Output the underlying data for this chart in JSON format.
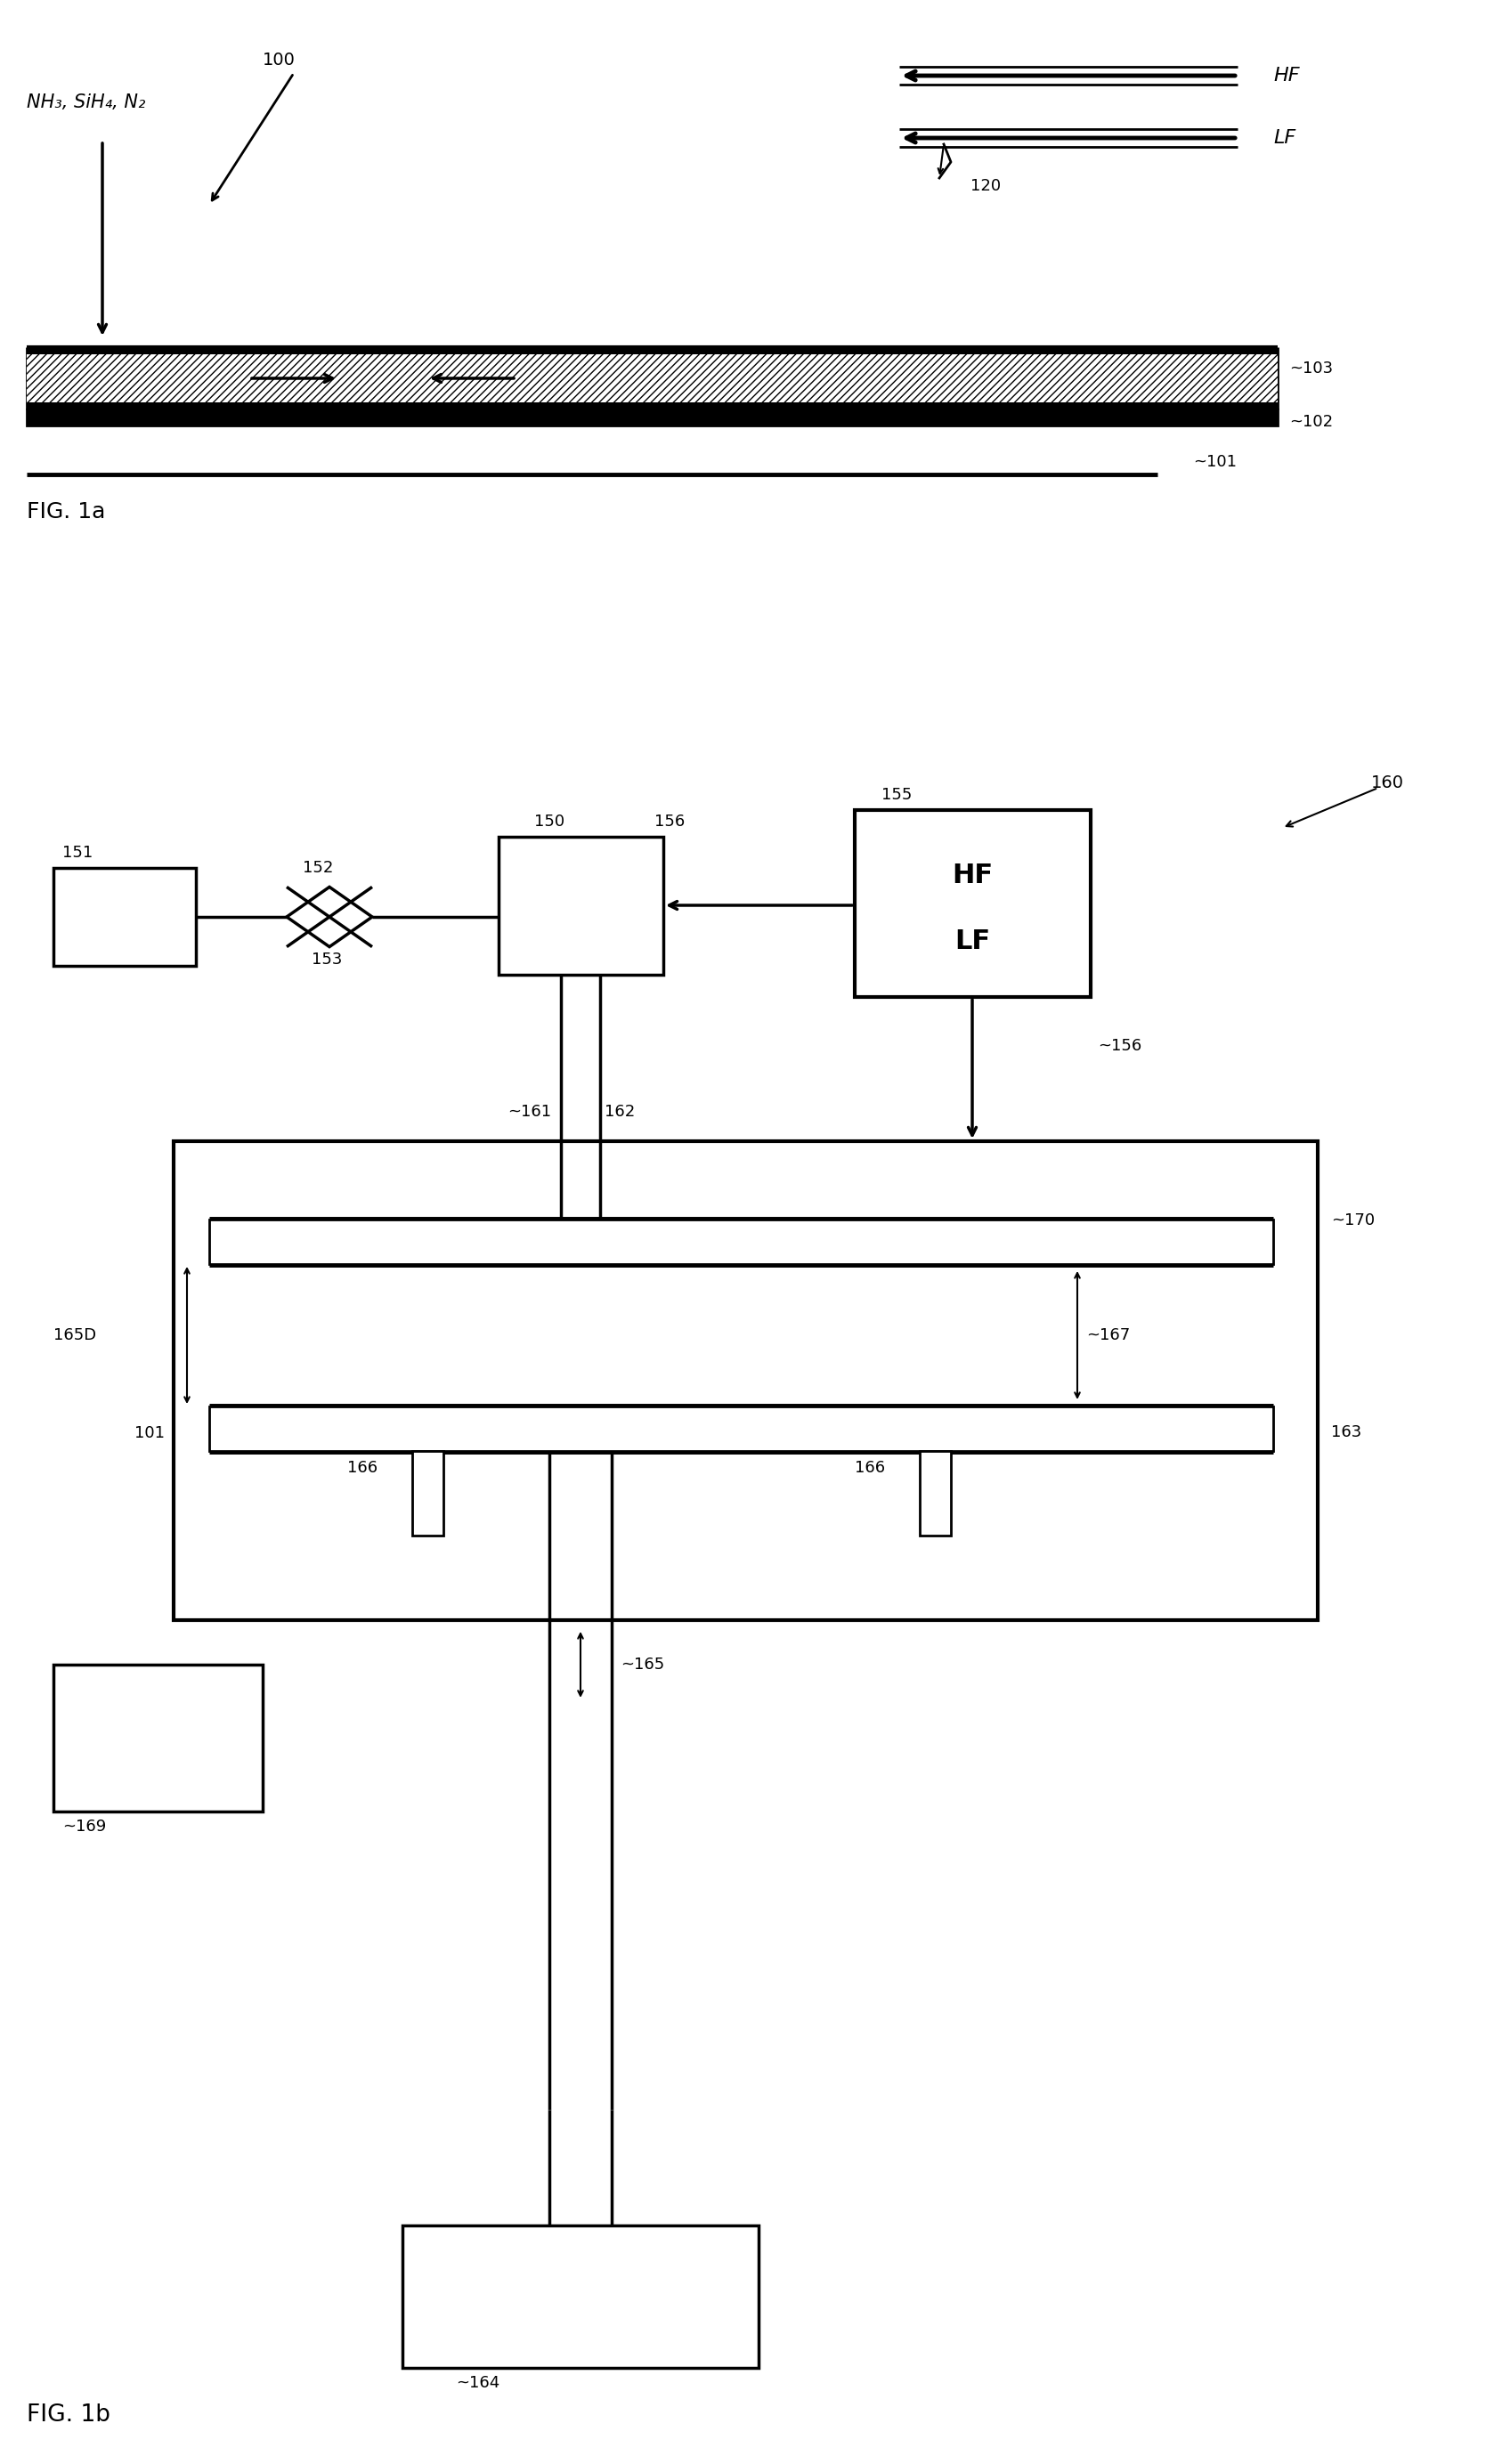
{
  "fig_width": 16.78,
  "fig_height": 27.68,
  "bg": "#ffffff",
  "lc": "#000000",
  "labels": {
    "nh3": "NH₃, SiH₄, N₂",
    "hf": "HF",
    "lf": "LF",
    "r100": "100",
    "r101a": "~101",
    "r102": "~102",
    "r103": "~103",
    "r120": "120",
    "fig1a": "FIG. 1a",
    "fig1b": "FIG. 1b",
    "r151": "151",
    "r152": "152",
    "r153": "153",
    "r150": "150",
    "r155": "155",
    "r156a": "156",
    "r156b": "~156",
    "r160": "160",
    "r161": "~161",
    "r162": "162",
    "r163": "163",
    "r164": "~164",
    "r165": "~165",
    "r165d": "165D",
    "r166a": "166",
    "r166b": "166",
    "r167": "~167",
    "r169": "~169",
    "r170": "~170",
    "r101b": "101"
  }
}
